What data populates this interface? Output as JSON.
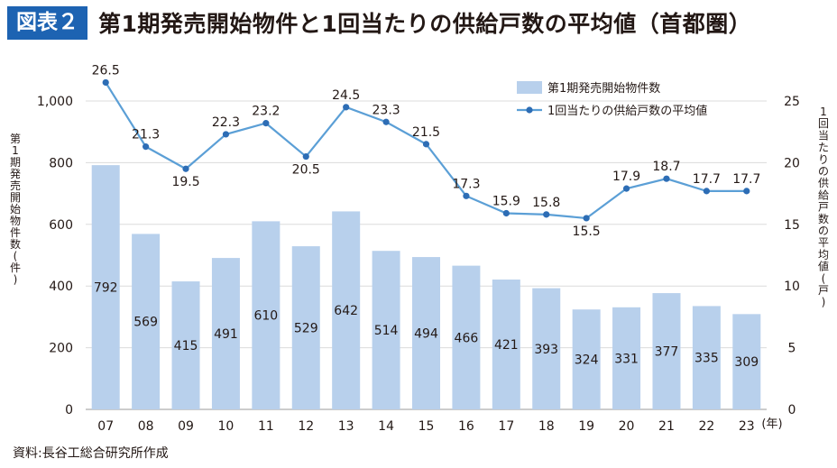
{
  "header": {
    "badge": "図表２",
    "title": "第1期発売開始物件と1回当たりの供給戸数の平均値（首都圏）"
  },
  "source": "資料:長谷工総合研究所作成",
  "colors": {
    "bar": "#b8d0ec",
    "line": "#5b9fd6",
    "badge": "#1d63b2",
    "grid": "#dcdcdc"
  },
  "chart_data": {
    "type": "bar+line",
    "categories": [
      "07",
      "08",
      "09",
      "10",
      "11",
      "12",
      "13",
      "14",
      "15",
      "16",
      "17",
      "18",
      "19",
      "20",
      "21",
      "22",
      "23"
    ],
    "x_unit": "(年)",
    "series": [
      {
        "name": "第1期発売開始物件数",
        "type": "bar",
        "axis": "left",
        "values": [
          792,
          569,
          415,
          491,
          610,
          529,
          642,
          514,
          494,
          466,
          421,
          393,
          324,
          331,
          377,
          335,
          309
        ],
        "labels": [
          "792",
          "569",
          "415",
          "491",
          "610",
          "529",
          "642",
          "514",
          "494",
          "466",
          "421",
          "393",
          "324",
          "331",
          "377",
          "335",
          "309"
        ]
      },
      {
        "name": "1回当たりの供給戸数の平均値",
        "type": "line",
        "axis": "right",
        "values": [
          26.5,
          21.3,
          19.5,
          22.3,
          23.2,
          20.5,
          24.5,
          23.3,
          21.5,
          17.3,
          15.9,
          15.8,
          15.5,
          17.9,
          18.7,
          17.7,
          17.7
        ],
        "labels": [
          "26.5",
          "21.3",
          "19.5",
          "22.3",
          "23.2",
          "20.5",
          "24.5",
          "23.3",
          "21.5",
          "17.3",
          "15.9",
          "15.8",
          "15.5",
          "17.9",
          "18.7",
          "17.7",
          "17.7"
        ]
      }
    ],
    "y_left": {
      "label": "第1期発売開始物件数(件)",
      "range": [
        0,
        1000
      ],
      "ticks": [
        0,
        200,
        400,
        600,
        800,
        1000
      ],
      "tick_labels": [
        "0",
        "200",
        "400",
        "600",
        "800",
        "1,000"
      ]
    },
    "y_right": {
      "label": "1回当たりの供給戸数の平均値(戸)",
      "range": [
        0,
        25
      ],
      "ticks": [
        0,
        5,
        10,
        15,
        20,
        25
      ],
      "tick_labels": [
        "0",
        "5",
        "10",
        "15",
        "20",
        "25"
      ]
    },
    "legend_position": "top-right",
    "grid": true
  }
}
